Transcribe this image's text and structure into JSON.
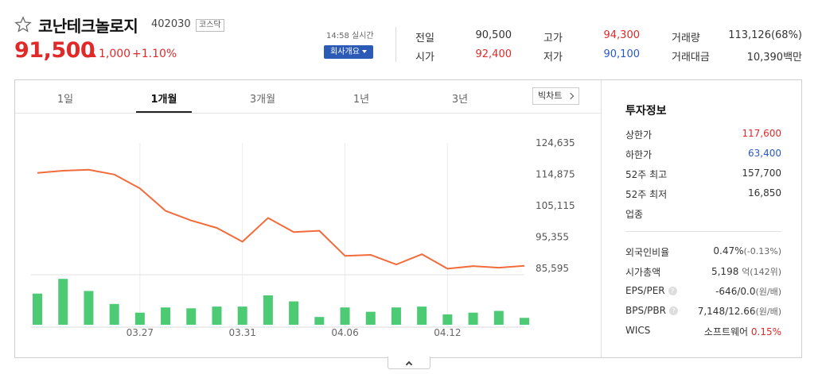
{
  "stock": {
    "name": "코난테크놀로지",
    "code": "402030",
    "market": "코스닥",
    "price": "91,500",
    "change": "1,000",
    "change_pct": "+1.10%"
  },
  "meta": {
    "time": "14:58 실시간",
    "company_button": "회사개요"
  },
  "quotes": {
    "prev_close_label": "전일",
    "prev_close": "90,500",
    "open_label": "시가",
    "open": "92,400",
    "high_label": "고가",
    "high": "94,300",
    "low_label": "저가",
    "low": "90,100",
    "volume_label": "거래량",
    "volume": "113,126(68%)",
    "amount_label": "거래대금",
    "amount": "10,390백만"
  },
  "tabs": [
    "1일",
    "1개월",
    "3개월",
    "1년",
    "3년"
  ],
  "active_tab": "1개월",
  "bigchart_label": "빅차트",
  "colors": {
    "up": "#e02a2a",
    "down": "#2a57c8",
    "line": "#f26b3a",
    "volume": "#4ccb74"
  },
  "chart_data": {
    "type": "line",
    "y_ticks": [
      "124,635",
      "114,875",
      "105,115",
      "95,355",
      "85,595"
    ],
    "ylim": [
      85595,
      124635
    ],
    "x_ticks": [
      "03.27",
      "03.31",
      "04.06",
      "04.12"
    ],
    "price_series": [
      115300,
      116000,
      116300,
      114800,
      110500,
      103500,
      100500,
      98200,
      93900,
      101300,
      96900,
      97300,
      89500,
      89800,
      86800,
      90000,
      85500,
      86300,
      85800,
      86400
    ],
    "volume_series": [
      36,
      53,
      39,
      24,
      14,
      20,
      19,
      21,
      21,
      34,
      27,
      9,
      20,
      15,
      20,
      21,
      12,
      14,
      16,
      8
    ]
  },
  "investment": {
    "title": "투자정보",
    "upper_limit_label": "상한가",
    "upper_limit": "117,600",
    "lower_limit_label": "하한가",
    "lower_limit": "63,400",
    "high52_label": "52주 최고",
    "high52": "157,700",
    "low52_label": "52주 최저",
    "low52": "16,850",
    "industry_label": "업종",
    "foreign_label": "외국인비율",
    "foreign": "0.47%",
    "foreign_change": "(-0.13%)",
    "mcap_label": "시가총액",
    "mcap": "5,198",
    "mcap_unit": "억(142위)",
    "eps_label": "EPS/PER",
    "eps": "-646/0.0",
    "eps_unit": "(원/배)",
    "bps_label": "BPS/PBR",
    "bps": "7,148/12.66",
    "bps_unit": "(원/배)",
    "wics_label": "WICS",
    "wics": "소프트웨어",
    "wics_pct": "0.15%"
  }
}
